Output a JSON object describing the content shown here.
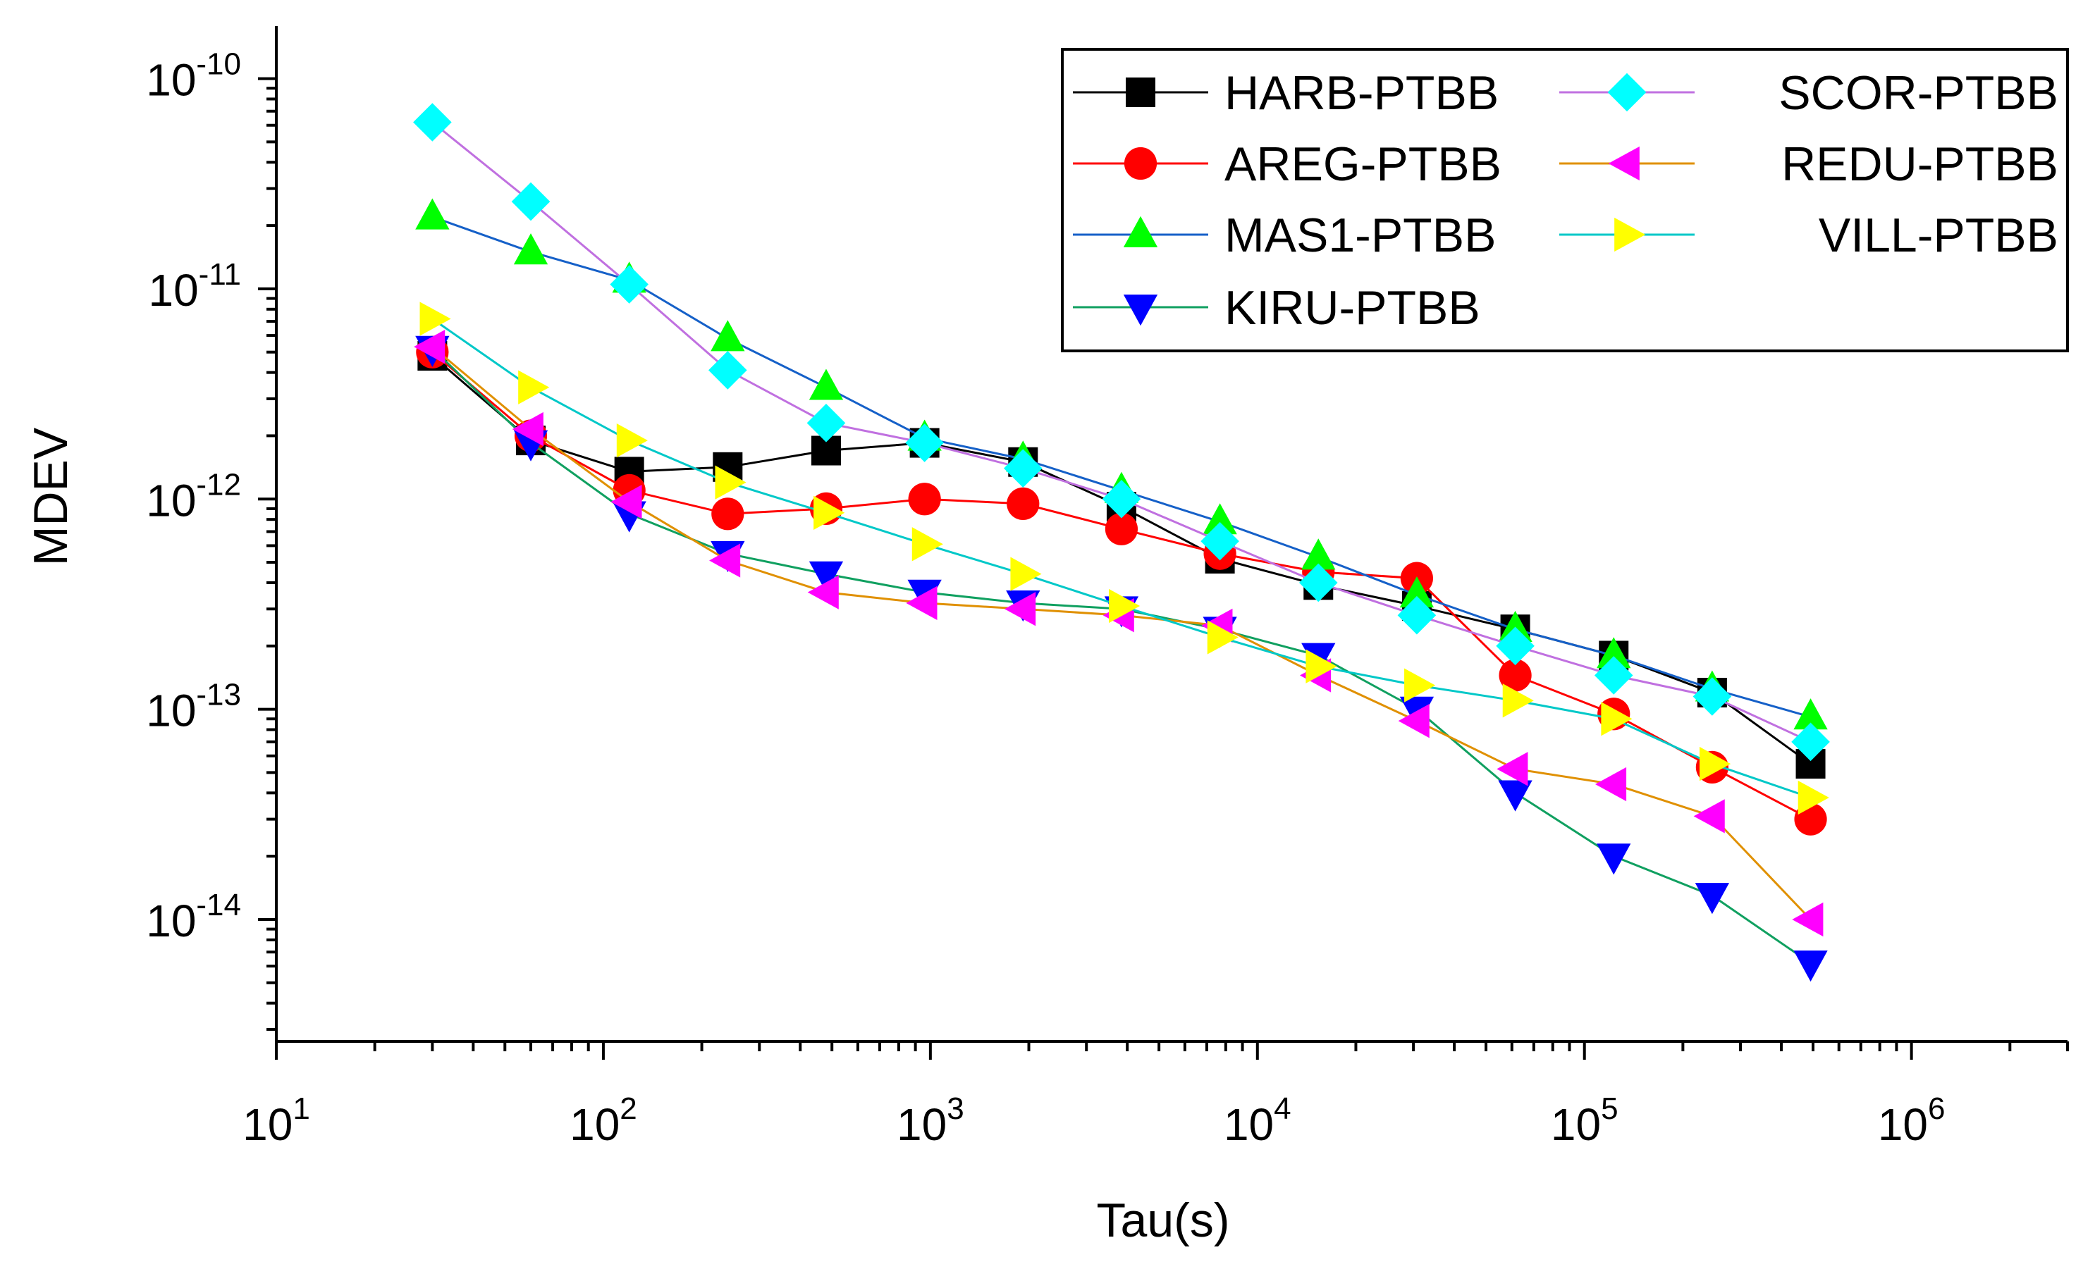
{
  "chart_data": {
    "type": "line",
    "xscale": "log",
    "yscale": "log",
    "xlabel": "Tau(s)",
    "ylabel": "MDEV",
    "xlim": [
      10,
      3000000
    ],
    "ylim": [
      2.63e-15,
      1.778e-10
    ],
    "xticks": [
      {
        "base": "10",
        "exp": "1",
        "value": 10
      },
      {
        "base": "10",
        "exp": "2",
        "value": 100
      },
      {
        "base": "10",
        "exp": "3",
        "value": 1000
      },
      {
        "base": "10",
        "exp": "4",
        "value": 10000
      },
      {
        "base": "10",
        "exp": "5",
        "value": 100000
      },
      {
        "base": "10",
        "exp": "6",
        "value": 1000000
      }
    ],
    "yticks": [
      {
        "base": "10",
        "exp": "-14",
        "value": 1e-14
      },
      {
        "base": "10",
        "exp": "-13",
        "value": 1e-13
      },
      {
        "base": "10",
        "exp": "-12",
        "value": 1e-12
      },
      {
        "base": "10",
        "exp": "-11",
        "value": 1e-11
      },
      {
        "base": "10",
        "exp": "-10",
        "value": 1e-10
      }
    ],
    "legend_position": "top-right",
    "x": [
      30,
      60,
      120,
      240,
      480,
      960,
      1920,
      3840,
      7680,
      15360,
      30720,
      61440,
      122880,
      245760,
      491520
    ],
    "series": [
      {
        "name": "HARB-PTBB",
        "color": "#000000",
        "marker": "square",
        "values": [
          4.8e-12,
          1.9e-12,
          1.35e-12,
          1.42e-12,
          1.7e-12,
          1.85e-12,
          1.5e-12,
          9.2e-13,
          5.2e-13,
          3.9e-13,
          3.1e-13,
          2.4e-13,
          1.8e-13,
          1.2e-13,
          5.5e-14
        ]
      },
      {
        "name": "AREG-PTBB",
        "color": "#ff0000",
        "marker": "circle",
        "values": [
          5e-12,
          2e-12,
          1.1e-12,
          8.5e-13,
          9e-13,
          1e-12,
          9.5e-13,
          7.2e-13,
          5.5e-13,
          4.5e-13,
          4.2e-13,
          1.45e-13,
          9.5e-14,
          5.3e-14,
          3e-14
        ]
      },
      {
        "name": "MAS1-PTBB",
        "color": "#00ff00",
        "line": "#1560c8",
        "marker": "triangle-up",
        "values": [
          2.2e-11,
          1.5e-11,
          1.1e-11,
          5.8e-12,
          3.4e-12,
          1.95e-12,
          1.55e-12,
          1.1e-12,
          7.8e-13,
          5.3e-13,
          3.5e-13,
          2.4e-13,
          1.8e-13,
          1.25e-13,
          9.2e-14
        ]
      },
      {
        "name": "KIRU-PTBB",
        "color": "#0000ff",
        "line": "#10a060",
        "marker": "triangle-down",
        "values": [
          5.2e-12,
          1.85e-12,
          8.5e-13,
          5.5e-13,
          4.4e-13,
          3.6e-13,
          3.2e-13,
          3e-13,
          2.4e-13,
          1.8e-13,
          1e-13,
          4e-14,
          2e-14,
          1.3e-14,
          6.2e-15
        ]
      },
      {
        "name": "SCOR-PTBB",
        "color": "#00ffff",
        "line": "#c070e0",
        "marker": "diamond",
        "values": [
          6.2e-11,
          2.6e-11,
          1.05e-11,
          4.1e-12,
          2.3e-12,
          1.85e-12,
          1.4e-12,
          1e-12,
          6.3e-13,
          4e-13,
          2.8e-13,
          2e-13,
          1.45e-13,
          1.15e-13,
          7e-14
        ]
      },
      {
        "name": "REDU-PTBB",
        "color": "#ff00ff",
        "line": "#e09000",
        "marker": "triangle-left",
        "values": [
          5.3e-12,
          2.15e-12,
          9.7e-13,
          5.1e-13,
          3.6e-13,
          3.2e-13,
          3e-13,
          2.8e-13,
          2.5e-13,
          1.45e-13,
          8.8e-14,
          5.2e-14,
          4.4e-14,
          3.1e-14,
          1e-14
        ]
      },
      {
        "name": "VILL-PTBB",
        "color": "#ffff00",
        "line": "#00c8c8",
        "marker": "triangle-right",
        "values": [
          7.2e-12,
          3.4e-12,
          1.9e-12,
          1.2e-12,
          8.6e-13,
          6.1e-13,
          4.4e-13,
          3.1e-13,
          2.2e-13,
          1.6e-13,
          1.3e-13,
          1.1e-13,
          9e-14,
          5.5e-14,
          3.8e-14
        ]
      }
    ]
  }
}
